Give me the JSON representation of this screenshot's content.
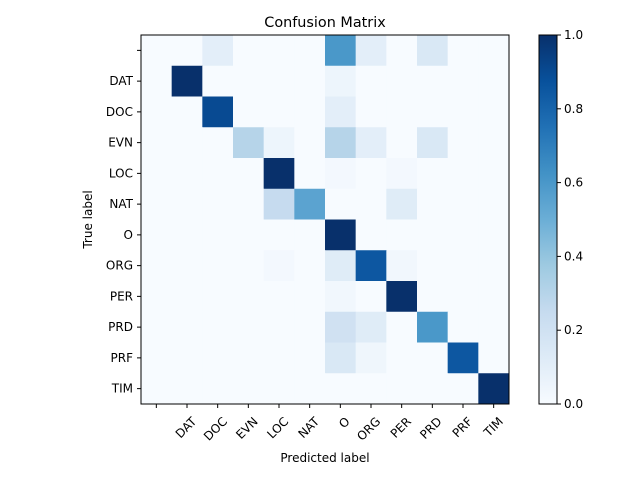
{
  "chart_data": {
    "type": "heatmap",
    "title": "Confusion Matrix",
    "xlabel": "Predicted label",
    "ylabel": "True label",
    "labels": [
      "",
      "DAT",
      "DOC",
      "EVN",
      "LOC",
      "NAT",
      "O",
      "ORG",
      "PER",
      "PRD",
      "PRF",
      "TIM"
    ],
    "matrix": [
      [
        0.0,
        0.0,
        0.1,
        0.0,
        0.0,
        0.0,
        0.6,
        0.1,
        0.0,
        0.15,
        0.0,
        0.0
      ],
      [
        0.0,
        1.0,
        0.0,
        0.0,
        0.0,
        0.0,
        0.05,
        0.0,
        0.0,
        0.0,
        0.0,
        0.0
      ],
      [
        0.0,
        0.0,
        0.9,
        0.0,
        0.0,
        0.0,
        0.1,
        0.0,
        0.0,
        0.0,
        0.0,
        0.0
      ],
      [
        0.0,
        0.0,
        0.0,
        0.3,
        0.05,
        0.0,
        0.3,
        0.1,
        0.0,
        0.15,
        0.0,
        0.0
      ],
      [
        0.0,
        0.0,
        0.0,
        0.0,
        1.0,
        0.0,
        0.02,
        0.0,
        0.02,
        0.0,
        0.0,
        0.0
      ],
      [
        0.0,
        0.0,
        0.0,
        0.0,
        0.25,
        0.55,
        0.0,
        0.0,
        0.12,
        0.0,
        0.0,
        0.0
      ],
      [
        0.0,
        0.0,
        0.0,
        0.0,
        0.0,
        0.0,
        1.0,
        0.0,
        0.0,
        0.0,
        0.0,
        0.0
      ],
      [
        0.0,
        0.0,
        0.0,
        0.0,
        0.02,
        0.0,
        0.12,
        0.85,
        0.03,
        0.0,
        0.0,
        0.0
      ],
      [
        0.0,
        0.0,
        0.0,
        0.0,
        0.0,
        0.0,
        0.03,
        0.0,
        1.0,
        0.0,
        0.0,
        0.0
      ],
      [
        0.0,
        0.0,
        0.0,
        0.0,
        0.0,
        0.0,
        0.2,
        0.12,
        0.0,
        0.6,
        0.0,
        0.0
      ],
      [
        0.0,
        0.0,
        0.0,
        0.0,
        0.0,
        0.0,
        0.15,
        0.04,
        0.0,
        0.0,
        0.85,
        0.0
      ],
      [
        0.0,
        0.0,
        0.0,
        0.0,
        0.0,
        0.0,
        0.0,
        0.0,
        0.0,
        0.0,
        0.0,
        1.0
      ]
    ],
    "colormap": "Blues",
    "colorbar": {
      "range": [
        0.0,
        1.0
      ],
      "ticks": [
        "0.0",
        "0.2",
        "0.4",
        "0.6",
        "0.8",
        "1.0"
      ]
    }
  }
}
